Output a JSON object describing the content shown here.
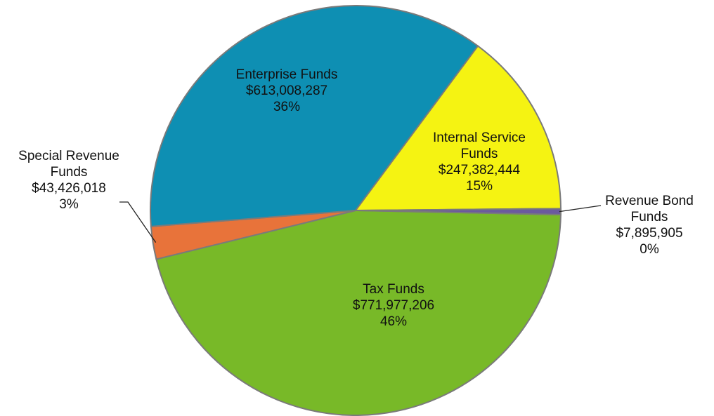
{
  "chart_data": {
    "type": "pie",
    "slices": [
      {
        "name": "Tax Funds",
        "value": 771977206,
        "percent_label": "46%",
        "value_label": "$771,977,206",
        "label_lines": [
          "Tax Funds",
          "$771,977,206",
          "46%"
        ],
        "color": "#78b928"
      },
      {
        "name": "Special Revenue Funds",
        "value": 43426018,
        "percent_label": "3%",
        "value_label": "$43,426,018",
        "label_lines": [
          "Special Revenue",
          "Funds",
          "$43,426,018",
          "3%"
        ],
        "color": "#e8733a"
      },
      {
        "name": "Enterprise Funds",
        "value": 613008287,
        "percent_label": "36%",
        "value_label": "$613,008,287",
        "label_lines": [
          "Enterprise Funds",
          "$613,008,287",
          "36%"
        ],
        "color": "#0e8fb3"
      },
      {
        "name": "Internal Service Funds",
        "value": 247382444,
        "percent_label": "15%",
        "value_label": "$247,382,444",
        "label_lines": [
          "Internal Service",
          "Funds",
          "$247,382,444",
          "15%"
        ],
        "color": "#f5f312"
      },
      {
        "name": "Revenue Bond Funds",
        "value": 7895905,
        "percent_label": "0%",
        "value_label": "$7,895,905",
        "label_lines": [
          "Revenue Bond",
          "Funds",
          "$7,895,905",
          "0%"
        ],
        "color": "#6b5a9e"
      }
    ],
    "legend": "none"
  }
}
